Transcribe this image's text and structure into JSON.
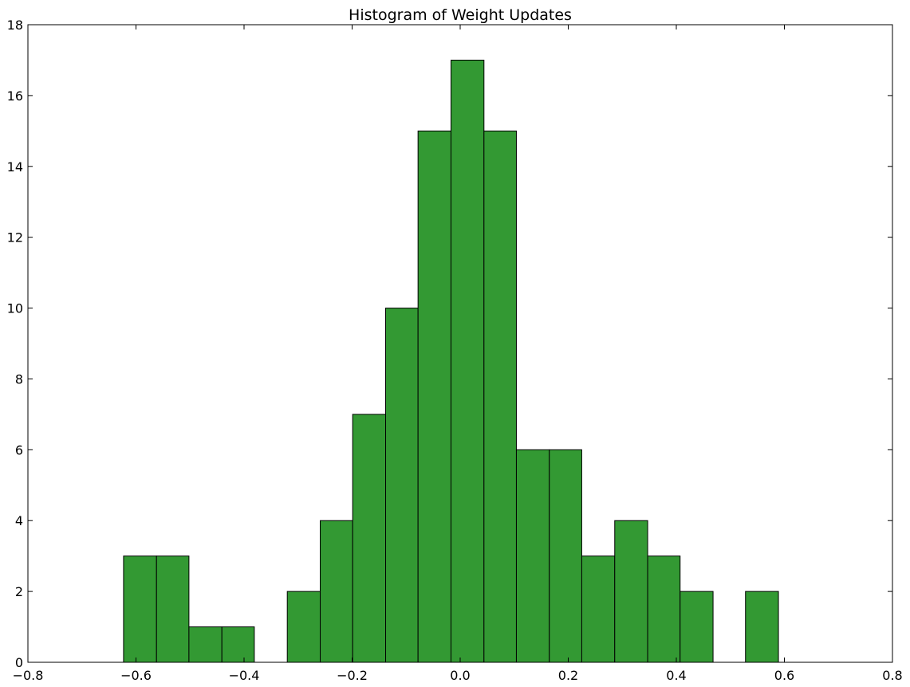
{
  "chart_data": {
    "type": "bar",
    "title": "Histogram of Weight Updates",
    "xlabel": "",
    "ylabel": "",
    "xlim": [
      -0.8,
      0.8
    ],
    "ylim": [
      0,
      18
    ],
    "x_ticks": [
      -0.8,
      -0.6,
      -0.4,
      -0.2,
      0.0,
      0.2,
      0.4,
      0.6,
      0.8
    ],
    "x_tick_labels": [
      "−0.8",
      "−0.6",
      "−0.4",
      "−0.2",
      "0.0",
      "0.2",
      "0.4",
      "0.6",
      "0.8"
    ],
    "y_ticks": [
      0,
      2,
      4,
      6,
      8,
      10,
      12,
      14,
      16,
      18
    ],
    "y_tick_labels": [
      "0",
      "2",
      "4",
      "6",
      "8",
      "10",
      "12",
      "14",
      "16",
      "18"
    ],
    "grid": false,
    "bar_color": "#339933",
    "edge_color": "#000000",
    "bin_edges": [
      -0.623,
      -0.562,
      -0.502,
      -0.441,
      -0.381,
      -0.32,
      -0.259,
      -0.199,
      -0.138,
      -0.078,
      -0.017,
      0.044,
      0.104,
      0.165,
      0.225,
      0.286,
      0.347,
      0.407,
      0.468,
      0.528,
      0.589
    ],
    "values": [
      3,
      3,
      1,
      1,
      0,
      2,
      4,
      7,
      10,
      15,
      17,
      15,
      6,
      6,
      3,
      4,
      3,
      2,
      0,
      2
    ]
  }
}
